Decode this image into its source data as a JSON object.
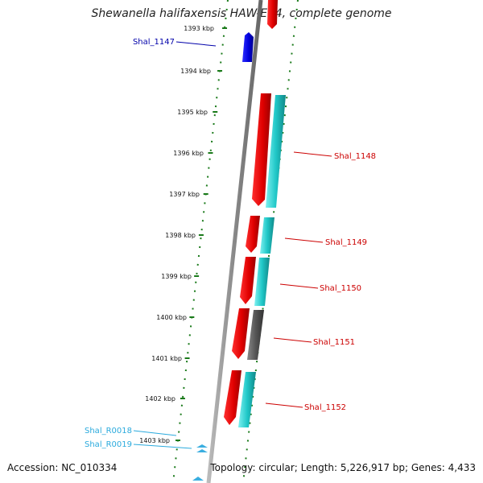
{
  "title": "Shewanella halifaxensis HAW-EB4, complete genome",
  "footer": {
    "accession": "Accession: NC_010334",
    "summary": "Topology: circular; Length: 5,226,917 bp; Genes: 4,433"
  },
  "colors": {
    "backbone": "#888888",
    "ticks": "#1a7a1a",
    "cds_forward": "#e50000",
    "cds_reverse": "#0000dd",
    "cog": "#22c8c8",
    "cog_unknown": "#555555",
    "rna": "#3aaee0"
  },
  "ticks": [
    {
      "label": "1393 kbp"
    },
    {
      "label": "1394 kbp"
    },
    {
      "label": "1395 kbp"
    },
    {
      "label": "1396 kbp"
    },
    {
      "label": "1397 kbp"
    },
    {
      "label": "1398 kbp"
    },
    {
      "label": "1399 kbp"
    },
    {
      "label": "1400 kbp"
    },
    {
      "label": "1401 kbp"
    },
    {
      "label": "1402 kbp"
    },
    {
      "label": "1403 kbp"
    }
  ],
  "genes": [
    {
      "name": "Shal_1147",
      "color": "#0000aa"
    },
    {
      "name": "Shal_1148",
      "color": "#cc0000"
    },
    {
      "name": "Shal_1149",
      "color": "#cc0000"
    },
    {
      "name": "Shal_1150",
      "color": "#cc0000"
    },
    {
      "name": "Shal_1151",
      "color": "#cc0000"
    },
    {
      "name": "Shal_1152",
      "color": "#cc0000"
    },
    {
      "name": "Shal_R0018",
      "color": "#2aaadd"
    },
    {
      "name": "Shal_R0019",
      "color": "#2aaadd"
    }
  ]
}
